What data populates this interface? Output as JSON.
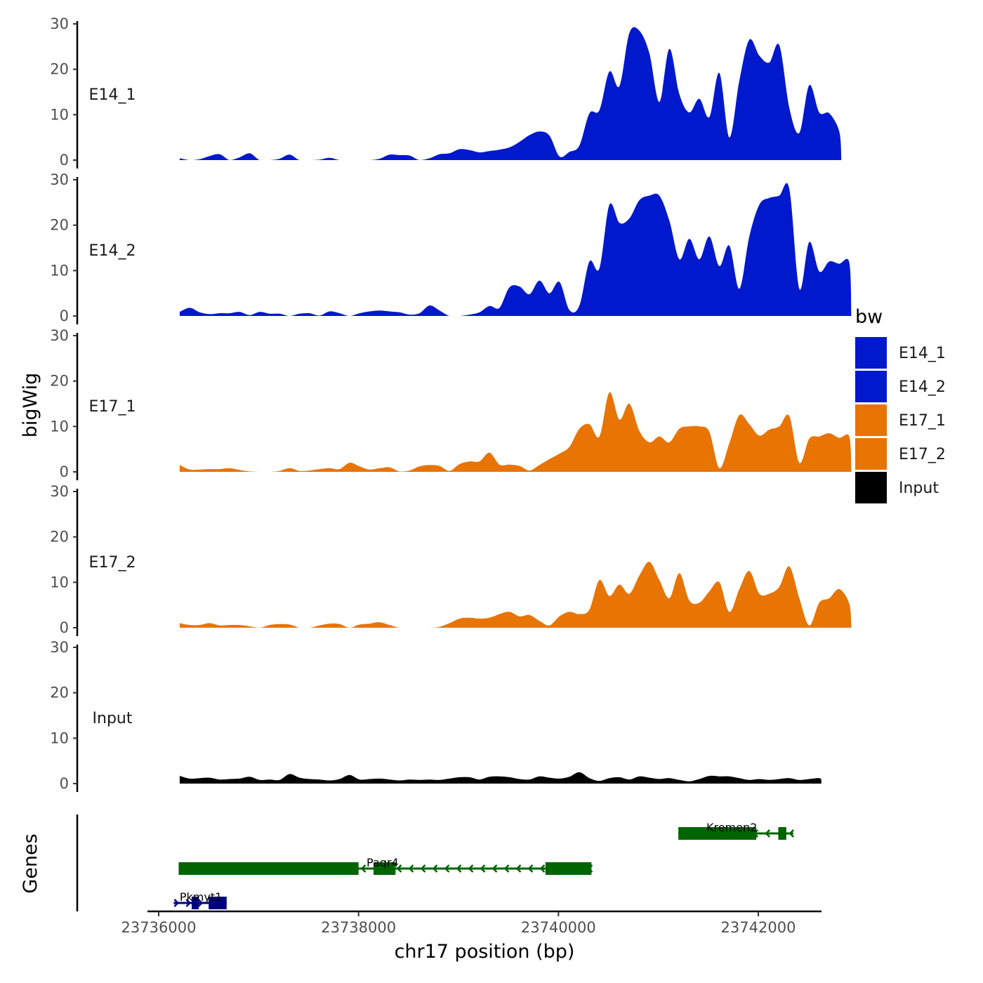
{
  "chart_data": {
    "type": "area",
    "chromosome": "chr17",
    "xlabel": "chr17 position (bp)",
    "ylabel": "bigWig",
    "genes_label": "Genes",
    "xlim": [
      23735900,
      23742800
    ],
    "x_ticks": [
      {
        "value": 23736000,
        "label": "23736000"
      },
      {
        "value": 23738000,
        "label": "23738000"
      },
      {
        "value": 23740000,
        "label": "23740000"
      },
      {
        "value": 23742000,
        "label": "23742000"
      }
    ],
    "ylim": [
      0,
      30
    ],
    "y_ticks": [
      {
        "value": 0,
        "label": "0"
      },
      {
        "value": 10,
        "label": "10"
      },
      {
        "value": 20,
        "label": "20"
      },
      {
        "value": 30,
        "label": "30"
      }
    ],
    "x_start": 23736210,
    "x_step": 100,
    "legend": {
      "title": "bw",
      "items": [
        {
          "name": "E14_1",
          "color": "#0019CC"
        },
        {
          "name": "E14_2",
          "color": "#0019CC"
        },
        {
          "name": "E17_1",
          "color": "#E87403"
        },
        {
          "name": "E17_2",
          "color": "#E87403"
        },
        {
          "name": "Input",
          "color": "#000000"
        }
      ]
    },
    "series": [
      {
        "name": "E14_1",
        "label": "E14_1",
        "color": "#0019CC",
        "values": [
          0.4,
          0,
          0.2,
          0.9,
          1.3,
          0,
          0.6,
          1.5,
          0,
          0,
          0.3,
          1.2,
          0,
          0,
          0.1,
          0.5,
          0,
          0,
          0,
          0,
          0.3,
          1.2,
          1.1,
          1.0,
          0,
          0.4,
          1.3,
          1.5,
          2.4,
          2.2,
          1.7,
          2.0,
          2.3,
          2.8,
          4.0,
          5.5,
          6.3,
          5.4,
          0.8,
          1.8,
          3.2,
          10.3,
          11.0,
          19.5,
          16.3,
          28.0,
          28.5,
          23.5,
          12.8,
          24.5,
          14.5,
          10.5,
          13.5,
          9.5,
          19.2,
          5.0,
          17.5,
          26.5,
          23.0,
          21.5,
          25.3,
          11.5,
          6.0,
          16.5,
          10.5,
          10.3,
          6.3
        ],
        "end_value": 0
      },
      {
        "name": "E14_2",
        "label": "E14_2",
        "color": "#0019CC",
        "values": [
          0.9,
          1.8,
          0.8,
          0.4,
          0.6,
          0.6,
          0.9,
          0.2,
          0.9,
          0.5,
          0.5,
          0,
          0.5,
          0.6,
          0.1,
          1.0,
          0.6,
          0,
          0.6,
          1.0,
          1.2,
          1.0,
          0.8,
          0.3,
          0.6,
          2.3,
          1.2,
          0,
          0,
          0.3,
          0.8,
          2.2,
          1.8,
          6.3,
          6.5,
          4.8,
          7.8,
          5.0,
          7.5,
          1.3,
          2.3,
          12.0,
          10.5,
          24.5,
          20.5,
          21.5,
          25.5,
          26.5,
          26.5,
          21.0,
          12.5,
          17.0,
          12.5,
          17.5,
          11.0,
          15.5,
          6.0,
          17.5,
          24.5,
          26.0,
          26.5,
          28.0,
          6.0,
          16.3,
          9.8,
          12.0,
          11.5,
          11.8
        ],
        "end_value": 0
      },
      {
        "name": "E17_1",
        "label": "E17_1",
        "color": "#E87403",
        "values": [
          1.5,
          0.5,
          0.5,
          0.6,
          0.6,
          0.8,
          0.4,
          0.1,
          0,
          0,
          0.2,
          0.8,
          0.2,
          0.3,
          0.6,
          0.8,
          0.6,
          2.0,
          1.2,
          0.5,
          0.8,
          1.0,
          0.1,
          0.3,
          1.2,
          1.5,
          1.3,
          0.2,
          1.7,
          2.3,
          2.3,
          4.2,
          1.6,
          1.6,
          1.3,
          0.3,
          1.5,
          2.8,
          4.0,
          5.5,
          9.5,
          10.5,
          7.8,
          17.5,
          11.5,
          15.0,
          9.0,
          6.5,
          7.8,
          6.5,
          9.5,
          10.0,
          10.0,
          8.8,
          0.8,
          6.3,
          12.5,
          10.5,
          8.0,
          9.3,
          10.0,
          12.3,
          2.0,
          7.3,
          7.8,
          8.5,
          7.5,
          7.8
        ],
        "end_value": 0
      },
      {
        "name": "E17_2",
        "label": "E17_2",
        "color": "#E87403",
        "values": [
          1.0,
          0.6,
          0.6,
          1.0,
          0.5,
          0.6,
          0.6,
          0.3,
          0,
          0.6,
          0.8,
          0.7,
          0,
          0,
          0.5,
          0.9,
          0.8,
          0,
          0.7,
          0.9,
          1.2,
          0.6,
          0,
          0,
          0,
          0,
          0.2,
          1.0,
          2.0,
          2.2,
          2.0,
          2.2,
          3.0,
          3.5,
          2.5,
          2.8,
          1.5,
          0.5,
          2.5,
          3.5,
          3.0,
          4.0,
          10.5,
          7.0,
          9.5,
          7.5,
          11.5,
          14.5,
          10.5,
          6.5,
          12.0,
          6.0,
          5.5,
          8.0,
          10.0,
          3.5,
          8.5,
          12.5,
          7.5,
          7.5,
          9.0,
          13.5,
          6.5,
          0.5,
          5.5,
          6.5,
          8.5,
          5.3
        ],
        "end_value": 0
      },
      {
        "name": "Input",
        "label": "Input",
        "color": "#000000",
        "values": [
          1.7,
          1.1,
          1.2,
          1.3,
          0.9,
          1.0,
          1.1,
          1.5,
          0.8,
          0.9,
          0.8,
          2.1,
          1.3,
          1.0,
          0.9,
          0.7,
          1.0,
          1.9,
          0.9,
          1.0,
          1.1,
          0.9,
          0.7,
          0.9,
          0.8,
          0.9,
          0.8,
          1.1,
          1.4,
          1.4,
          0.9,
          1.5,
          1.6,
          1.4,
          1.0,
          0.9,
          1.6,
          1.3,
          1.1,
          1.5,
          2.5,
          1.2,
          0.6,
          1.2,
          1.4,
          0.9,
          1.6,
          1.3,
          1.0,
          1.2,
          0.8,
          0.5,
          1.0,
          1.7,
          1.6,
          1.6,
          1.2,
          0.8,
          1.0,
          0.8,
          1.0,
          1.2,
          0.8,
          1.0,
          1.2
        ],
        "end_value": 0.8
      }
    ],
    "genes": [
      {
        "name": "Kremen2",
        "strand": "-",
        "color": "#006400",
        "start": 23741200,
        "end": 23742350,
        "label_pos": 23741480,
        "row": 0,
        "exons": [
          {
            "start": 23741200,
            "end": 23741980
          },
          {
            "start": 23742200,
            "end": 23742280
          }
        ]
      },
      {
        "name": "Paqr4",
        "strand": "-",
        "color": "#006400",
        "start": 23736200,
        "end": 23740330,
        "label_pos": 23738080,
        "row": 1,
        "exons": [
          {
            "start": 23736200,
            "end": 23738000
          },
          {
            "start": 23738150,
            "end": 23738370
          },
          {
            "start": 23739870,
            "end": 23740330
          }
        ]
      },
      {
        "name": "Pkmyt1",
        "strand": "+",
        "color": "#000080",
        "start": 23736150,
        "end": 23736680,
        "label_pos": 23736210,
        "row": 2,
        "exons": [
          {
            "start": 23736330,
            "end": 23736400
          },
          {
            "start": 23736500,
            "end": 23736680
          }
        ]
      }
    ]
  }
}
